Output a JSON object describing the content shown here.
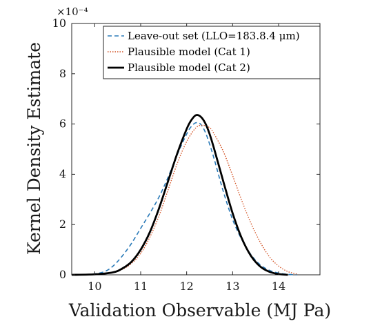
{
  "chart_data": {
    "type": "line",
    "title": "",
    "xlabel": "Validation Observable (MJ Pa)",
    "ylabel": "Kernel Density Estimate",
    "xlim": [
      9.5,
      14.9
    ],
    "ylim": [
      0,
      10
    ],
    "xticks": [
      10,
      11,
      12,
      13,
      14
    ],
    "xtick_labels": [
      "10",
      "11",
      "12",
      "13",
      "14"
    ],
    "yticks": [
      0,
      2,
      4,
      6,
      8,
      10
    ],
    "ytick_labels": [
      "0",
      "2",
      "4",
      "6",
      "8",
      "10"
    ],
    "y_multiplier": "×10⁻⁴",
    "grid": false,
    "legend_position": "top-right",
    "series": [
      {
        "name": "Leave-out set (LLO=183.8.4 μm)",
        "style": "dashed",
        "color": "#2a7ab8",
        "x": [
          9.5,
          9.9,
          10.2,
          10.4,
          10.6,
          10.8,
          11.0,
          11.2,
          11.4,
          11.6,
          11.8,
          12.0,
          12.1,
          12.2,
          12.3,
          12.4,
          12.5,
          12.6,
          12.8,
          13.0,
          13.2,
          13.4,
          13.6,
          13.8,
          14.0,
          14.2,
          14.4
        ],
        "values": [
          0.0,
          0.02,
          0.12,
          0.35,
          0.75,
          1.25,
          1.85,
          2.45,
          3.1,
          3.9,
          4.8,
          5.6,
          5.9,
          6.05,
          6.0,
          5.7,
          5.2,
          4.6,
          3.3,
          2.2,
          1.4,
          0.8,
          0.4,
          0.18,
          0.07,
          0.02,
          0.0
        ]
      },
      {
        "name": "Plausible model (Cat 1)",
        "style": "dotted",
        "color": "#d4572a",
        "x": [
          9.5,
          10.0,
          10.4,
          10.6,
          10.8,
          11.0,
          11.2,
          11.4,
          11.6,
          11.8,
          12.0,
          12.2,
          12.35,
          12.5,
          12.6,
          12.8,
          13.0,
          13.2,
          13.4,
          13.6,
          13.8,
          14.0,
          14.2,
          14.4
        ],
        "values": [
          0.0,
          0.02,
          0.1,
          0.22,
          0.45,
          0.85,
          1.5,
          2.35,
          3.4,
          4.45,
          5.3,
          5.85,
          5.95,
          5.85,
          5.6,
          4.9,
          3.95,
          2.95,
          2.05,
          1.3,
          0.72,
          0.35,
          0.13,
          0.03
        ]
      },
      {
        "name": "Plausible model (Cat 2)",
        "style": "solid",
        "color": "#000000",
        "x": [
          9.5,
          10.0,
          10.4,
          10.6,
          10.8,
          11.0,
          11.2,
          11.4,
          11.6,
          11.8,
          12.0,
          12.1,
          12.2,
          12.3,
          12.4,
          12.5,
          12.6,
          12.8,
          13.0,
          13.2,
          13.4,
          13.6,
          13.8,
          14.0,
          14.2
        ],
        "values": [
          0.0,
          0.02,
          0.1,
          0.25,
          0.52,
          1.0,
          1.7,
          2.65,
          3.75,
          4.85,
          5.8,
          6.15,
          6.35,
          6.3,
          6.05,
          5.6,
          5.0,
          3.7,
          2.45,
          1.45,
          0.75,
          0.33,
          0.12,
          0.03,
          0.0
        ]
      }
    ]
  }
}
